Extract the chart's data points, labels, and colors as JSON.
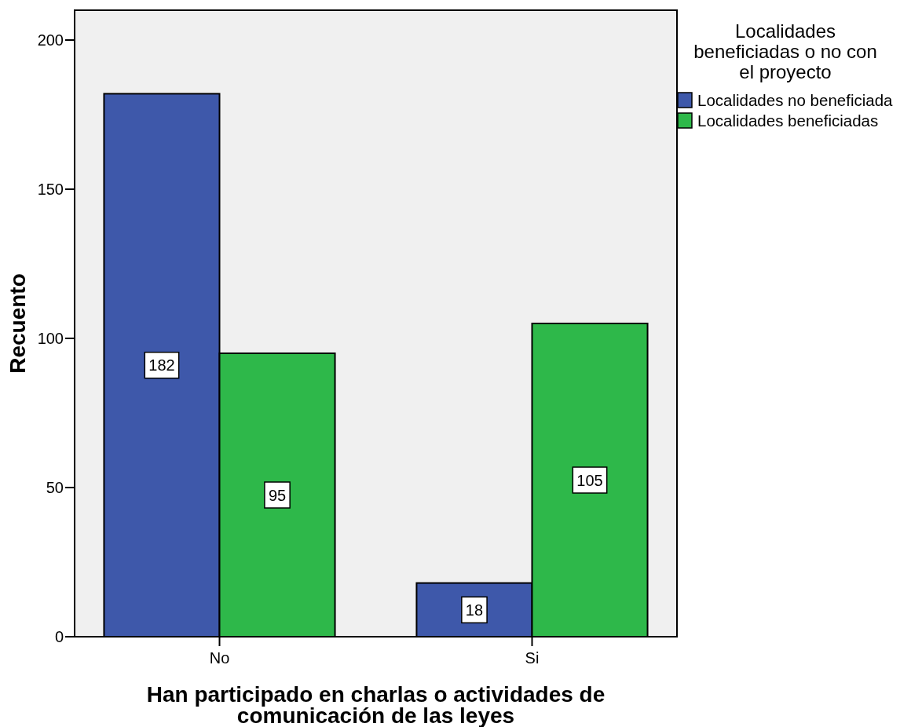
{
  "chart_data": {
    "type": "bar",
    "xlabel": "Han participado en charlas o actividades de comunicación de las leyes",
    "ylabel": "Recuento",
    "legend_title": "Localidades beneficiadas o no con el proyecto",
    "categories": [
      "No",
      "Si"
    ],
    "series": [
      {
        "name": "Localidades no beneficiada",
        "color": "#3e58aa",
        "values": [
          182,
          18
        ]
      },
      {
        "name": "Localidades beneficiadas",
        "color": "#2eb84a",
        "values": [
          95,
          105
        ]
      }
    ],
    "ylim": [
      0,
      210
    ],
    "yticks": [
      0,
      50,
      100,
      150,
      200
    ],
    "grid": false,
    "legend": "right",
    "data_labels": true
  }
}
